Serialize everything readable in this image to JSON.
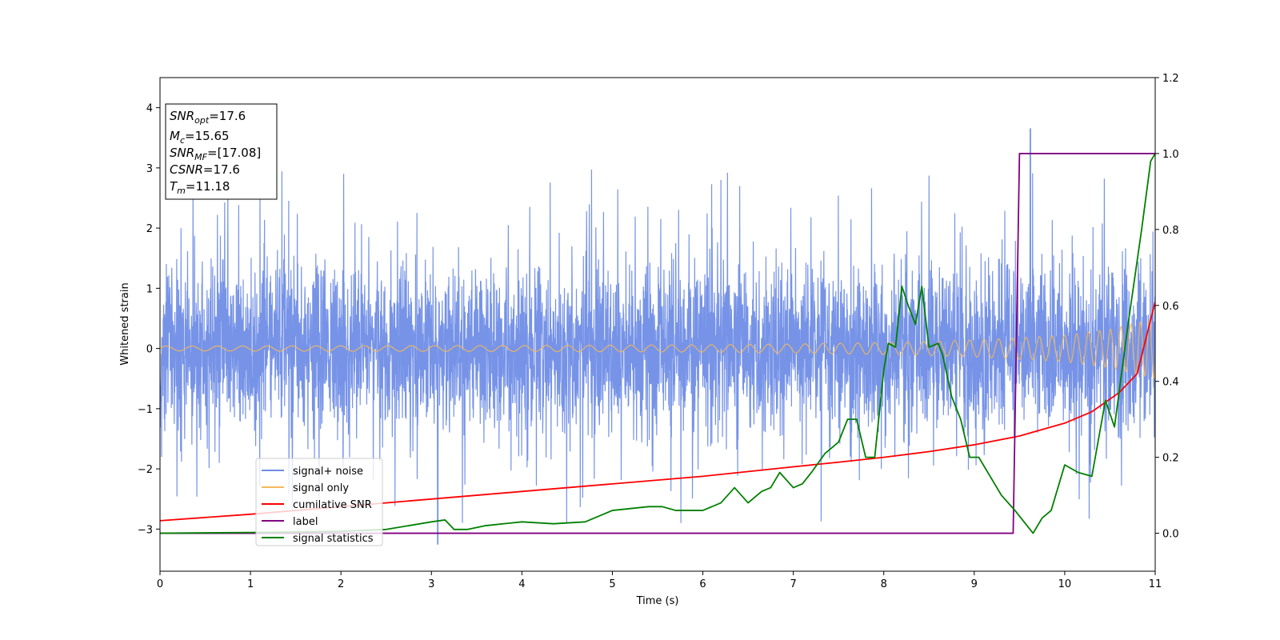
{
  "chart_data": {
    "type": "line",
    "xlabel": "Time (s)",
    "ylabel": "Whitened strain",
    "xlim": [
      0,
      11
    ],
    "ylim": [
      -3.7,
      4.5
    ],
    "y2lim": [
      -0.1,
      1.2
    ],
    "x_ticks": [
      0,
      1,
      2,
      3,
      4,
      5,
      6,
      7,
      8,
      9,
      10,
      11
    ],
    "y_ticks": [
      -3,
      -2,
      -1,
      0,
      1,
      2,
      3,
      4
    ],
    "y2_ticks": [
      0.0,
      0.2,
      0.4,
      0.6,
      0.8,
      1.0,
      1.2
    ],
    "x_tick_labels": [
      "0",
      "1",
      "2",
      "3",
      "4",
      "5",
      "6",
      "7",
      "8",
      "9",
      "10",
      "11"
    ],
    "y_tick_labels": [
      "−3",
      "−2",
      "−1",
      "0",
      "1",
      "2",
      "3",
      "4"
    ],
    "y2_tick_labels": [
      "0.0",
      "0.2",
      "0.4",
      "0.6",
      "0.8",
      "1.0",
      "1.2"
    ],
    "grid": false,
    "legend_position": "lower-left",
    "legend": [
      {
        "name": "signal+ noise",
        "color": "#6f8de6"
      },
      {
        "name": "signal only",
        "color": "#f5b85c"
      },
      {
        "name": "cumilative SNR",
        "color": "#ff0000"
      },
      {
        "name": "label",
        "color": "#800080"
      },
      {
        "name": "signal statistics",
        "color": "#008000"
      }
    ],
    "annotation": {
      "lines": [
        {
          "base": "SNR",
          "sub": "opt",
          "rest": "=17.6"
        },
        {
          "base": "M",
          "sub": "c",
          "rest": "=15.65"
        },
        {
          "base": "SNR",
          "sub": "MF",
          "rest": "=[17.08]"
        },
        {
          "base": "CSNR",
          "sub": "",
          "rest": "=17.6"
        },
        {
          "base": "T",
          "sub": "m",
          "rest": "=11.18"
        }
      ]
    },
    "series": [
      {
        "name": "signal+ noise",
        "axis": "left",
        "color": "#6f8de6",
        "description_stats": {
          "typical_range": [
            -1.5,
            1.5
          ],
          "max": 3.65,
          "max_at": 9.62,
          "min": -3.25,
          "min_at": 3.07
        }
      },
      {
        "name": "signal only",
        "axis": "left",
        "color": "#f5b85c",
        "amplitude": {
          "x": [
            0,
            2,
            4,
            6,
            7,
            8,
            9,
            10,
            10.5,
            11
          ],
          "y": [
            0.04,
            0.045,
            0.05,
            0.06,
            0.075,
            0.1,
            0.14,
            0.22,
            0.32,
            0.5
          ]
        }
      },
      {
        "name": "cumilative SNR",
        "axis": "right",
        "color": "#ff0000",
        "x": [
          0,
          1,
          2,
          3,
          4,
          5,
          6,
          7,
          7.5,
          8,
          8.5,
          9,
          9.5,
          10,
          10.3,
          10.6,
          10.8,
          11
        ],
        "y": [
          0.033,
          0.05,
          0.07,
          0.09,
          0.11,
          0.13,
          0.15,
          0.175,
          0.187,
          0.2,
          0.215,
          0.233,
          0.256,
          0.29,
          0.32,
          0.37,
          0.42,
          0.61
        ]
      },
      {
        "name": "label",
        "axis": "right",
        "color": "#800080",
        "x": [
          0,
          9.43,
          9.5,
          11
        ],
        "y": [
          0.0,
          0.0,
          1.0,
          1.0
        ]
      },
      {
        "name": "signal statistics",
        "axis": "right",
        "color": "#008000",
        "x": [
          0,
          1,
          2,
          2.5,
          3.0,
          3.15,
          3.25,
          3.4,
          3.6,
          4.0,
          4.35,
          4.7,
          4.9,
          5.0,
          5.2,
          5.4,
          5.55,
          5.7,
          5.85,
          6.0,
          6.2,
          6.35,
          6.5,
          6.65,
          6.75,
          6.85,
          7.0,
          7.1,
          7.2,
          7.35,
          7.5,
          7.6,
          7.7,
          7.8,
          7.9,
          8.0,
          8.05,
          8.13,
          8.2,
          8.27,
          8.35,
          8.42,
          8.5,
          8.6,
          8.65,
          8.75,
          8.85,
          8.95,
          9.05,
          9.2,
          9.3,
          9.45,
          9.65,
          9.75,
          9.85,
          10.0,
          10.15,
          10.3,
          10.45,
          10.55,
          10.7,
          10.85,
          10.95,
          11.0
        ],
        "y": [
          0.0,
          0.002,
          0.005,
          0.01,
          0.03,
          0.035,
          0.01,
          0.01,
          0.02,
          0.03,
          0.025,
          0.03,
          0.05,
          0.06,
          0.065,
          0.07,
          0.07,
          0.06,
          0.06,
          0.06,
          0.08,
          0.12,
          0.08,
          0.11,
          0.12,
          0.16,
          0.12,
          0.13,
          0.16,
          0.21,
          0.24,
          0.3,
          0.3,
          0.2,
          0.2,
          0.43,
          0.5,
          0.49,
          0.65,
          0.6,
          0.55,
          0.65,
          0.49,
          0.5,
          0.47,
          0.36,
          0.3,
          0.2,
          0.2,
          0.14,
          0.1,
          0.06,
          0.0,
          0.04,
          0.06,
          0.18,
          0.16,
          0.15,
          0.35,
          0.28,
          0.55,
          0.8,
          0.98,
          1.0
        ]
      }
    ]
  }
}
